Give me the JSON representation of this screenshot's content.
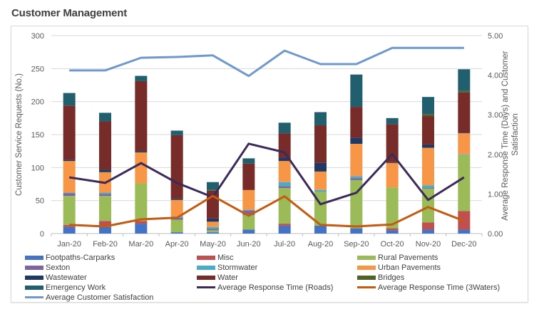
{
  "title": "Customer Management",
  "chart_data": {
    "type": "bar",
    "stacked": true,
    "title": "Customer Management",
    "categories": [
      "Jan-20",
      "Feb-20",
      "Mar-20",
      "Apr-20",
      "May-20",
      "Jun-20",
      "Jul-20",
      "Aug-20",
      "Sep-20",
      "Oct-20",
      "Nov-20",
      "Dec-20"
    ],
    "ylabel": "Customer Service Requests (No.)",
    "y2label": "Average Response Time (Days) and Customer Satisfaction",
    "ylim": [
      0,
      300
    ],
    "y2lim": [
      0,
      5
    ],
    "yticks": [
      "0",
      "50",
      "100",
      "150",
      "200",
      "250",
      "300"
    ],
    "y2ticks": [
      "0.00",
      "1.00",
      "2.00",
      "3.00",
      "4.00",
      "5.00"
    ],
    "grid": true,
    "legend_position": "bottom",
    "series": [
      {
        "name": "Footpaths-Carparks",
        "kind": "bar",
        "axis": "left",
        "color": "#4472c4",
        "values": [
          10,
          10,
          15,
          2,
          2,
          6,
          12,
          12,
          8,
          5,
          6,
          6
        ]
      },
      {
        "name": "Misc",
        "kind": "bar",
        "axis": "left",
        "color": "#c0504d",
        "values": [
          3,
          9,
          4,
          0,
          0,
          0,
          3,
          0,
          0,
          3,
          11,
          28
        ]
      },
      {
        "name": "Rural Pavements",
        "kind": "bar",
        "axis": "left",
        "color": "#9bbb59",
        "values": [
          44,
          38,
          57,
          19,
          3,
          22,
          54,
          51,
          73,
          62,
          51,
          85
        ]
      },
      {
        "name": "Sexton",
        "kind": "bar",
        "axis": "left",
        "color": "#8064a2",
        "values": [
          4,
          3,
          0,
          3,
          2,
          7,
          3,
          0,
          3,
          0,
          1,
          0
        ]
      },
      {
        "name": "Stormwater",
        "kind": "bar",
        "axis": "left",
        "color": "#4bacc6",
        "values": [
          1,
          2,
          0,
          2,
          3,
          1,
          6,
          3,
          3,
          0,
          4,
          1
        ]
      },
      {
        "name": "Urban Pavements",
        "kind": "bar",
        "axis": "left",
        "color": "#f79646",
        "values": [
          48,
          31,
          47,
          25,
          8,
          30,
          32,
          28,
          49,
          37,
          57,
          32
        ]
      },
      {
        "name": "Wastewater",
        "kind": "bar",
        "axis": "left",
        "color": "#1f3864",
        "values": [
          2,
          4,
          2,
          2,
          5,
          0,
          5,
          13,
          9,
          1,
          5,
          1
        ]
      },
      {
        "name": "Water",
        "kind": "bar",
        "axis": "left",
        "color": "#772c2a",
        "values": [
          82,
          73,
          106,
          96,
          42,
          40,
          37,
          57,
          47,
          58,
          43,
          61
        ]
      },
      {
        "name": "Bridges",
        "kind": "bar",
        "axis": "left",
        "color": "#4f6228",
        "values": [
          0,
          0,
          0,
          0,
          1,
          0,
          0,
          0,
          0,
          0,
          3,
          2
        ]
      },
      {
        "name": "Emergency Work",
        "kind": "bar",
        "axis": "left",
        "color": "#215e6e",
        "values": [
          19,
          13,
          8,
          7,
          12,
          8,
          16,
          20,
          49,
          9,
          26,
          33
        ]
      },
      {
        "name": "Average Response Time (Roads)",
        "kind": "line",
        "axis": "right",
        "color": "#3b2a5a",
        "values": [
          1.42,
          1.28,
          1.78,
          1.28,
          0.92,
          2.27,
          2.05,
          0.74,
          1.03,
          2.01,
          0.85,
          1.42
        ]
      },
      {
        "name": "Average Response Time (3Waters)",
        "kind": "line",
        "axis": "right",
        "color": "#c55a11",
        "values": [
          0.22,
          0.18,
          0.36,
          0.4,
          0.95,
          0.45,
          0.94,
          0.22,
          0.18,
          0.23,
          0.67,
          0.32
        ]
      },
      {
        "name": "Average Customer Satisfaction",
        "kind": "line",
        "axis": "right",
        "color": "#6f98cf",
        "values": [
          4.12,
          4.12,
          4.44,
          4.46,
          4.5,
          3.98,
          4.62,
          4.28,
          4.28,
          4.69,
          4.69,
          4.69
        ]
      }
    ]
  },
  "legend_order": [
    "Footpaths-Carparks",
    "Misc",
    "Rural Pavements",
    "Sexton",
    "Stormwater",
    "Urban Pavements",
    "Wastewater",
    "Water",
    "Bridges",
    "Emergency Work",
    "Average Response Time (Roads)",
    "Average Response Time (3Waters)",
    "Average Customer Satisfaction"
  ]
}
